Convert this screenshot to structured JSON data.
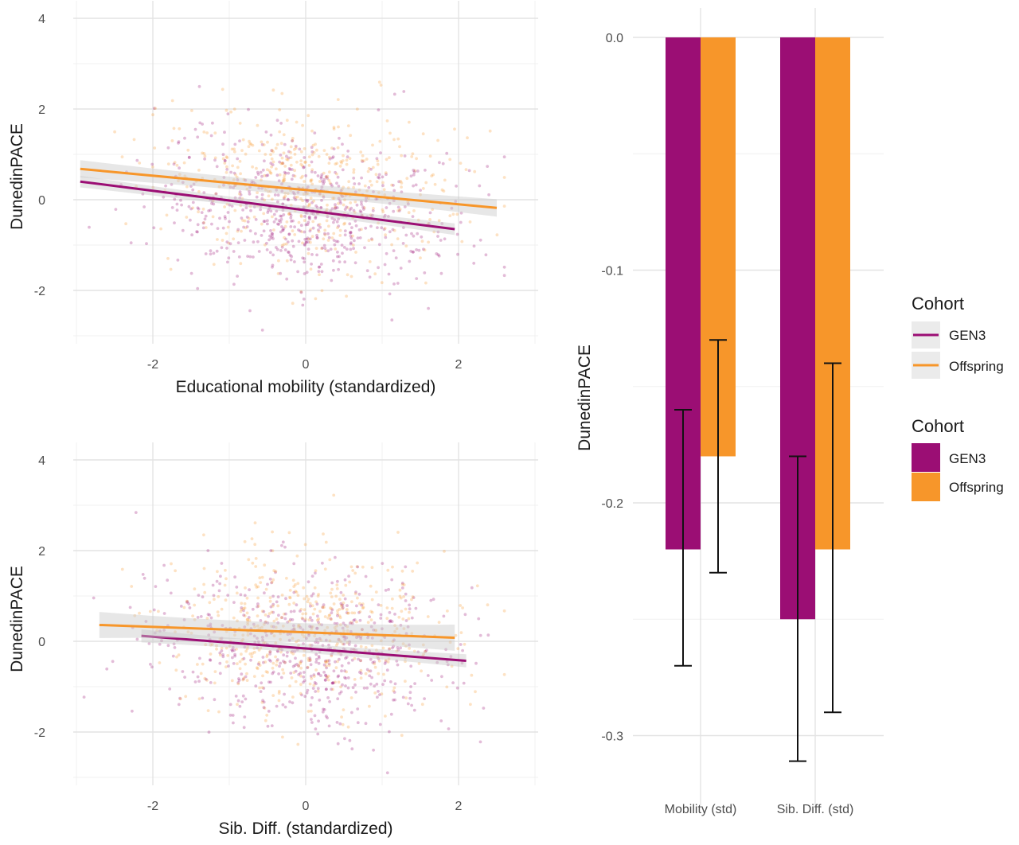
{
  "colors": {
    "gen3": "#9b0e74",
    "offspring": "#f7962a",
    "band": "#c9c9c9",
    "error_bar": "#111111"
  },
  "chart_data": [
    {
      "id": "scatter_top",
      "type": "scatter",
      "xlabel": "Educational mobility (standardized)",
      "ylabel": "DunedinPACE",
      "xlim": [
        -3.0,
        3.0
      ],
      "ylim": [
        -3.0,
        4.0
      ],
      "xticks": [
        -2,
        0,
        2
      ],
      "yticks": [
        -2,
        0,
        2,
        4
      ],
      "series": [
        {
          "name": "GEN3",
          "fit_line": {
            "x": [
              -2.95,
              1.95
            ],
            "y": [
              0.4,
              -0.65
            ]
          },
          "band_halfwidth": 0.08
        },
        {
          "name": "Offspring",
          "fit_line": {
            "x": [
              -2.95,
              2.5
            ],
            "y": [
              0.68,
              -0.18
            ]
          },
          "band_halfwidth": 0.12
        }
      ]
    },
    {
      "id": "scatter_bottom",
      "type": "scatter",
      "xlabel": "Sib. Diff. (standardized)",
      "ylabel": "DunedinPACE",
      "xlim": [
        -3.0,
        3.0
      ],
      "ylim": [
        -3.0,
        4.0
      ],
      "xticks": [
        -2,
        0,
        2
      ],
      "yticks": [
        -2,
        0,
        2,
        4
      ],
      "series": [
        {
          "name": "GEN3",
          "fit_line": {
            "x": [
              -2.15,
              2.1
            ],
            "y": [
              0.12,
              -0.43
            ]
          },
          "band_halfwidth": 0.09
        },
        {
          "name": "Offspring",
          "fit_line": {
            "x": [
              -2.7,
              1.95
            ],
            "y": [
              0.36,
              0.08
            ]
          },
          "band_halfwidth": 0.18
        }
      ]
    },
    {
      "id": "bar_right",
      "type": "bar",
      "ylabel": "DunedinPACE",
      "categories": [
        "Mobility (std)",
        "Sib. Diff. (std)"
      ],
      "ylim": [
        -0.33,
        0.01
      ],
      "yticks": [
        0.0,
        -0.1,
        -0.2,
        -0.3
      ],
      "ytick_labels": [
        "0.0",
        "-0.1",
        "-0.2",
        "-0.3"
      ],
      "series": [
        {
          "name": "GEN3",
          "values": [
            -0.22,
            -0.25
          ],
          "err_low": [
            -0.27,
            -0.311
          ],
          "err_high": [
            -0.16,
            -0.18
          ]
        },
        {
          "name": "Offspring",
          "values": [
            -0.18,
            -0.22
          ],
          "err_low": [
            -0.23,
            -0.29
          ],
          "err_high": [
            -0.13,
            -0.14
          ]
        }
      ]
    }
  ],
  "legend_lines": {
    "title": "Cohort",
    "items": [
      "GEN3",
      "Offspring"
    ]
  },
  "legend_bars": {
    "title": "Cohort",
    "items": [
      "GEN3",
      "Offspring"
    ]
  }
}
